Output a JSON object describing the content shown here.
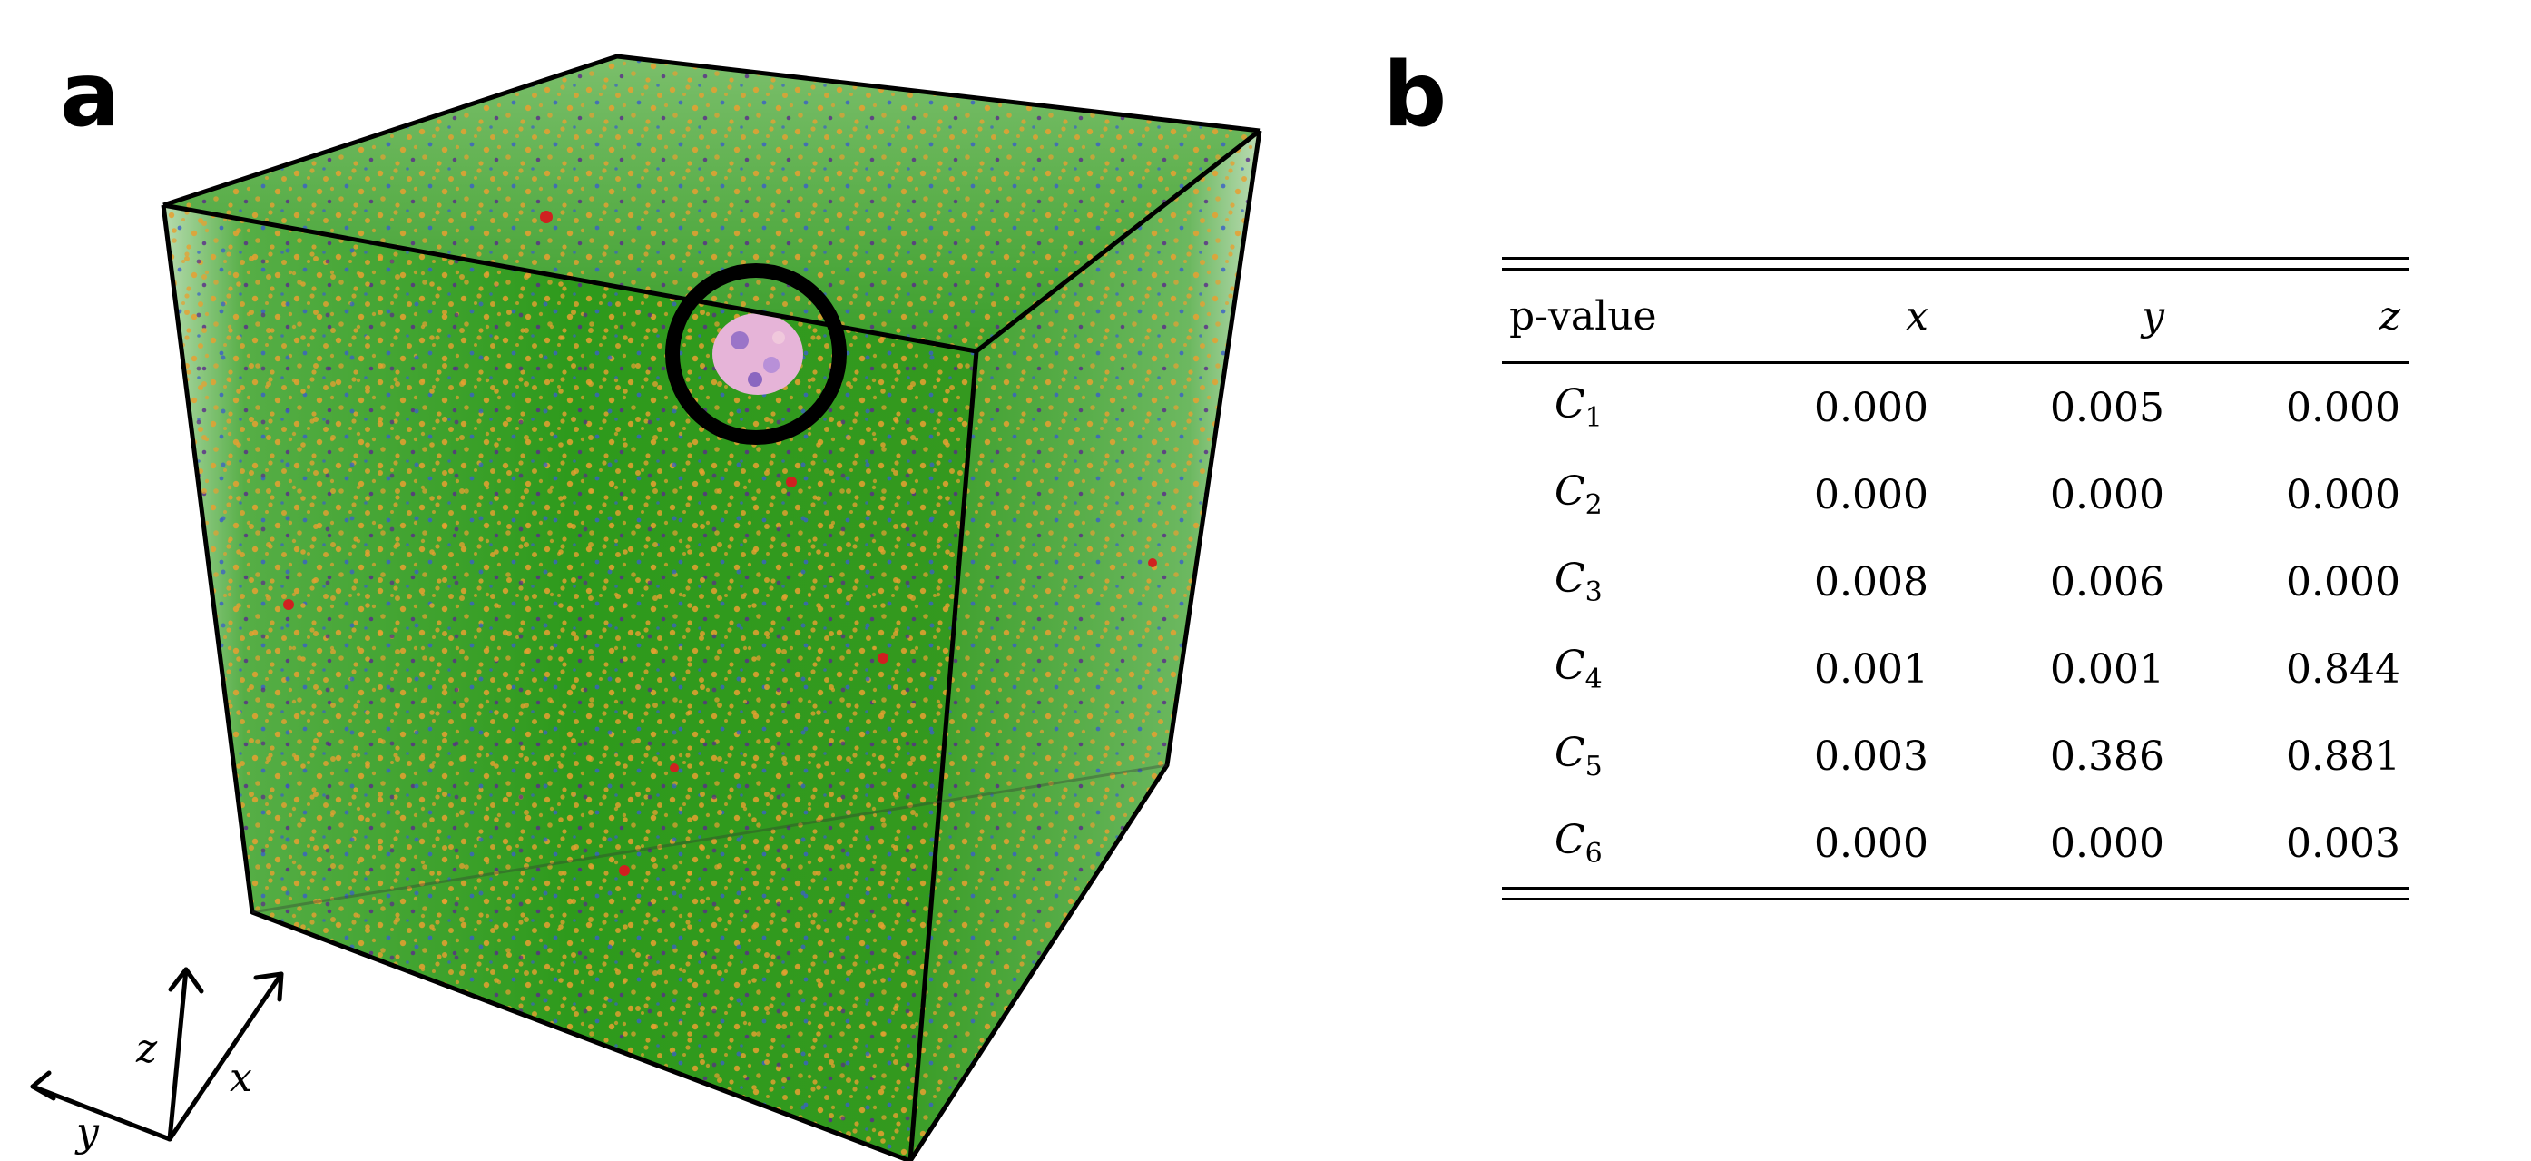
{
  "panels": {
    "a": {
      "label": "a"
    },
    "b": {
      "label": "b"
    }
  },
  "figure_a": {
    "description_colors": {
      "matrix": "#2e9a1c",
      "orange_atoms": "#e8a030",
      "blue_atoms": "#3a5fc8",
      "purple_atoms": "#5a2a8a",
      "red_atoms": "#d02020",
      "cluster": "#e0a8d8",
      "highlight_ring": "#000000"
    },
    "axes": {
      "x": "x",
      "y": "y",
      "z": "z"
    }
  },
  "table": {
    "headers": [
      "p-value",
      "x",
      "y",
      "z"
    ],
    "rows": [
      {
        "name": "C",
        "sub": "1",
        "values": [
          "0.000",
          "0.005",
          "0.000"
        ]
      },
      {
        "name": "C",
        "sub": "2",
        "values": [
          "0.000",
          "0.000",
          "0.000"
        ]
      },
      {
        "name": "C",
        "sub": "3",
        "values": [
          "0.008",
          "0.006",
          "0.000"
        ]
      },
      {
        "name": "C",
        "sub": "4",
        "values": [
          "0.001",
          "0.001",
          "0.844"
        ]
      },
      {
        "name": "C",
        "sub": "5",
        "values": [
          "0.003",
          "0.386",
          "0.881"
        ]
      },
      {
        "name": "C",
        "sub": "6",
        "values": [
          "0.000",
          "0.000",
          "0.003"
        ]
      }
    ]
  }
}
